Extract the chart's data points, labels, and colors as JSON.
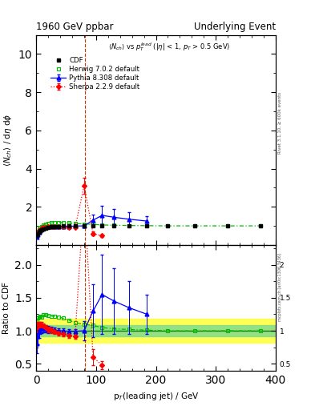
{
  "title_left": "1960 GeV ppbar",
  "title_right": "Underlying Event",
  "rivet_label": "Rivet 3.1.10, ≥ 600k events",
  "mcplots_label": "mcplots.cern.ch [arXiv:1306.3436]",
  "ylim_main": [
    0,
    11
  ],
  "ylim_ratio": [
    0.39,
    2.3
  ],
  "xlim": [
    0,
    400
  ],
  "yticks_main": [
    2,
    4,
    6,
    8,
    10
  ],
  "yticks_ratio": [
    0.5,
    1.0,
    1.5,
    2.0
  ],
  "cdf_x": [
    1.5,
    3,
    5,
    7,
    9,
    12,
    16,
    20,
    25,
    30,
    37,
    45,
    55,
    65,
    80,
    95,
    110,
    130,
    155,
    185,
    220,
    265,
    320,
    375
  ],
  "cdf_y": [
    0.52,
    0.6,
    0.68,
    0.74,
    0.8,
    0.85,
    0.89,
    0.92,
    0.94,
    0.96,
    0.975,
    0.985,
    0.995,
    1.0,
    1.0,
    1.0,
    1.0,
    1.0,
    1.0,
    1.0,
    1.0,
    1.0,
    1.0,
    1.0
  ],
  "cdf_yerr": [
    0.01,
    0.01,
    0.01,
    0.01,
    0.01,
    0.01,
    0.01,
    0.01,
    0.01,
    0.01,
    0.01,
    0.01,
    0.01,
    0.01,
    0.01,
    0.01,
    0.01,
    0.01,
    0.01,
    0.01,
    0.01,
    0.01,
    0.01,
    0.01
  ],
  "cdf_color": "#000000",
  "herwig_x": [
    1.5,
    3,
    5,
    7,
    9,
    12,
    16,
    20,
    25,
    30,
    37,
    45,
    55,
    65,
    80,
    95,
    110,
    130,
    155,
    185,
    220,
    265,
    320,
    375
  ],
  "herwig_y": [
    0.6,
    0.72,
    0.82,
    0.9,
    0.97,
    1.05,
    1.1,
    1.13,
    1.15,
    1.17,
    1.18,
    1.17,
    1.15,
    1.12,
    1.1,
    1.08,
    1.05,
    1.03,
    1.02,
    1.01,
    1.0,
    1.0,
    1.0,
    1.0
  ],
  "herwig_color": "#00bb00",
  "pythia_x": [
    1.5,
    3,
    5,
    7,
    9,
    12,
    16,
    20,
    25,
    30,
    37,
    45,
    55,
    65,
    80,
    95,
    110,
    130,
    155,
    185
  ],
  "pythia_y": [
    0.42,
    0.55,
    0.67,
    0.76,
    0.83,
    0.88,
    0.92,
    0.94,
    0.96,
    0.97,
    0.98,
    0.98,
    0.98,
    0.99,
    1.0,
    1.3,
    1.55,
    1.45,
    1.35,
    1.25
  ],
  "pythia_yerr": [
    0.05,
    0.05,
    0.05,
    0.05,
    0.04,
    0.04,
    0.04,
    0.04,
    0.04,
    0.04,
    0.03,
    0.03,
    0.03,
    0.03,
    0.1,
    0.3,
    0.5,
    0.45,
    0.35,
    0.25
  ],
  "pythia_color": "#0000ff",
  "sherpa_x": [
    1.5,
    3,
    5,
    7,
    9,
    12,
    16,
    20,
    25,
    30,
    37,
    45,
    55,
    65,
    80,
    95,
    110
  ],
  "sherpa_y": [
    0.55,
    0.65,
    0.74,
    0.81,
    0.87,
    0.91,
    0.93,
    0.94,
    0.95,
    0.95,
    0.95,
    0.94,
    0.93,
    0.92,
    3.1,
    0.6,
    0.48
  ],
  "sherpa_yerr": [
    0.03,
    0.03,
    0.03,
    0.03,
    0.03,
    0.03,
    0.03,
    0.03,
    0.03,
    0.03,
    0.03,
    0.03,
    0.03,
    0.03,
    0.4,
    0.1,
    0.05
  ],
  "sherpa_color": "#ff0000",
  "vline_x": 82,
  "vline_color": "#cc3300",
  "ratio_herwig_x": [
    1.5,
    3,
    5,
    7,
    9,
    12,
    16,
    20,
    25,
    30,
    37,
    45,
    55,
    65,
    80,
    95,
    110,
    130,
    155,
    185,
    220,
    265,
    320,
    375
  ],
  "ratio_herwig_y": [
    1.15,
    1.2,
    1.21,
    1.22,
    1.21,
    1.24,
    1.24,
    1.23,
    1.22,
    1.22,
    1.21,
    1.19,
    1.16,
    1.12,
    1.1,
    1.08,
    1.05,
    1.03,
    1.02,
    1.01,
    1.0,
    1.0,
    1.0,
    1.0
  ],
  "ratio_herwig_yerr": [
    0.05,
    0.04,
    0.04,
    0.03,
    0.03,
    0.03,
    0.03,
    0.03,
    0.03,
    0.03,
    0.03,
    0.03,
    0.03,
    0.03,
    0.05,
    0.05,
    0.05,
    0.04,
    0.04,
    0.03,
    0.03,
    0.03,
    0.03,
    0.03
  ],
  "ratio_pythia_x": [
    1.5,
    3,
    5,
    7,
    9,
    12,
    16,
    20,
    25,
    30,
    37,
    45,
    55,
    65,
    80,
    95,
    110,
    130,
    155,
    185
  ],
  "ratio_pythia_y": [
    0.81,
    0.91,
    0.99,
    1.03,
    1.04,
    1.04,
    1.03,
    1.02,
    1.02,
    1.01,
    1.0,
    1.0,
    0.99,
    0.99,
    1.0,
    1.3,
    1.55,
    1.45,
    1.35,
    1.25
  ],
  "ratio_pythia_yerr": [
    0.15,
    0.12,
    0.1,
    0.08,
    0.07,
    0.06,
    0.05,
    0.05,
    0.04,
    0.04,
    0.04,
    0.04,
    0.04,
    0.04,
    0.15,
    0.4,
    0.6,
    0.5,
    0.4,
    0.3
  ],
  "ratio_sherpa_x": [
    1.5,
    3,
    5,
    7,
    9,
    12,
    16,
    20,
    25,
    30,
    37,
    45,
    55,
    65,
    80,
    95,
    110
  ],
  "ratio_sherpa_y": [
    1.06,
    1.08,
    1.09,
    1.09,
    1.09,
    1.07,
    1.05,
    1.02,
    1.01,
    0.99,
    0.97,
    0.95,
    0.93,
    0.92,
    3.1,
    0.6,
    0.48
  ],
  "ratio_sherpa_yerr": [
    0.08,
    0.06,
    0.05,
    0.05,
    0.05,
    0.04,
    0.04,
    0.04,
    0.04,
    0.04,
    0.04,
    0.04,
    0.04,
    0.04,
    0.5,
    0.12,
    0.06
  ],
  "band_yellow_lo": 0.82,
  "band_yellow_hi": 1.18,
  "band_green_lo": 0.92,
  "band_green_hi": 1.08
}
